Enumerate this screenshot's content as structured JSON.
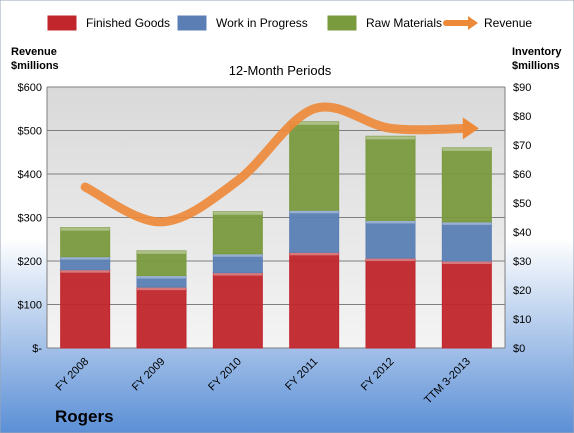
{
  "chart_data": {
    "type": "bar",
    "stacked": true,
    "title": "12-Month Periods",
    "company": "Rogers",
    "left_axis_label": [
      "Revenue",
      "$millions"
    ],
    "right_axis_label": [
      "Inventory",
      "$millions"
    ],
    "categories": [
      "FY 2008",
      "FY 2009",
      "FY 2010",
      "FY 2011",
      "FY 2012",
      "TTM 3-2013"
    ],
    "left_ticks": [
      "$-",
      "$100",
      "$200",
      "$300",
      "$400",
      "$500",
      "$600"
    ],
    "right_ticks": [
      "$0",
      "$10",
      "$20",
      "$30",
      "$40",
      "$50",
      "$60",
      "$70",
      "$80",
      "$90"
    ],
    "left_ylim": [
      0,
      600
    ],
    "right_ylim": [
      0,
      90
    ],
    "legend_position": "top",
    "series": [
      {
        "name": "Finished Goods",
        "axis": "right",
        "color": "#c0262c",
        "values": [
          27,
          21,
          26,
          33,
          31,
          30
        ]
      },
      {
        "name": "Work in Progress",
        "axis": "right",
        "color": "#5b7fb4",
        "values": [
          4.5,
          4,
          6.5,
          14.5,
          13,
          13.5
        ]
      },
      {
        "name": "Raw Materials",
        "axis": "right",
        "color": "#7a9a3e",
        "values": [
          10,
          8.5,
          14.5,
          30.5,
          29,
          25.5
        ]
      },
      {
        "name": "Revenue",
        "axis": "left",
        "type": "line",
        "color": "#ed8a3a",
        "values": [
          370,
          290,
          385,
          550,
          505,
          505
        ]
      }
    ]
  }
}
